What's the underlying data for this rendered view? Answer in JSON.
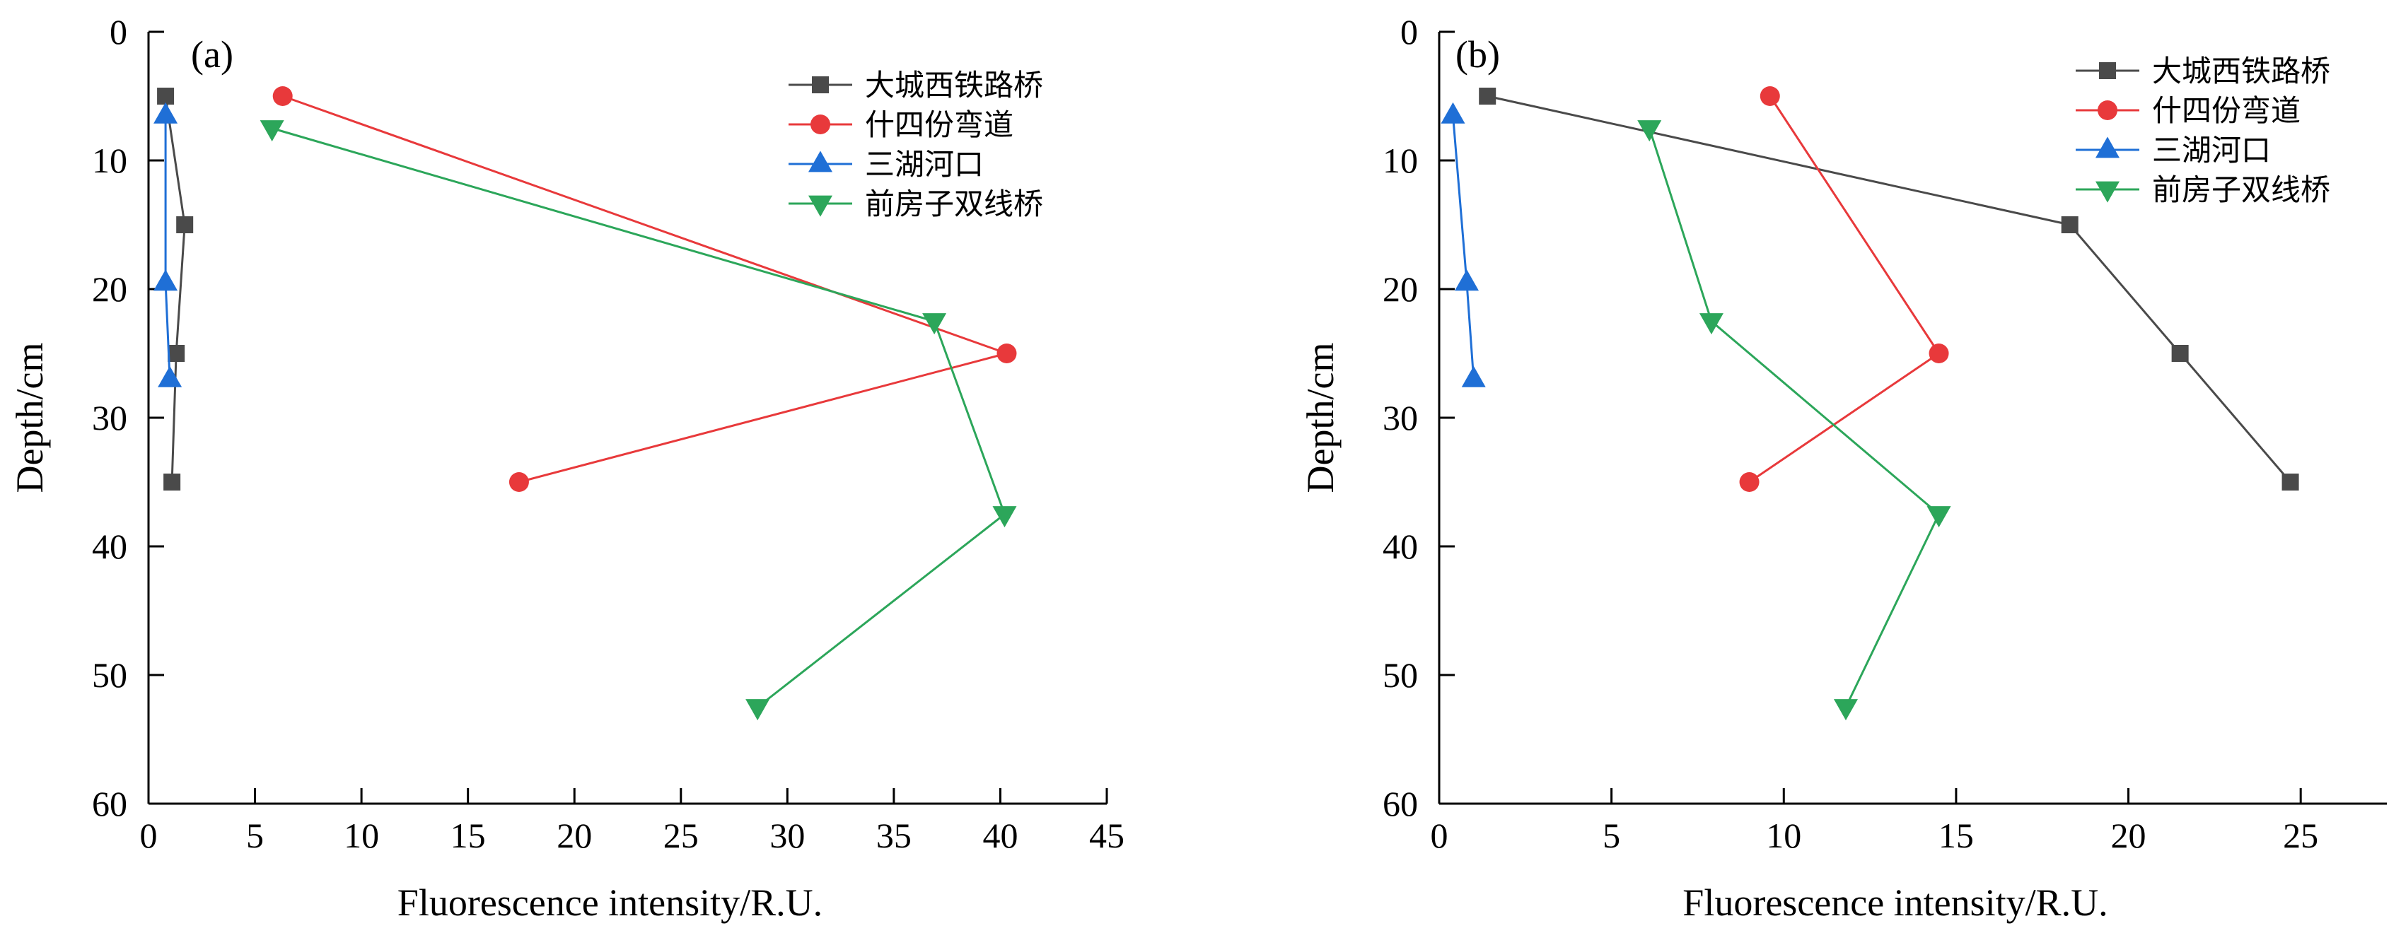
{
  "chart_data": [
    {
      "type": "line",
      "panel_label": "(a)",
      "xlabel": "Fluorescence intensity/R.U.",
      "ylabel": "Depth/cm",
      "xlim": [
        0,
        45
      ],
      "ylim": [
        0,
        60
      ],
      "y_inverted": true,
      "x_ticks": [
        0,
        5,
        10,
        15,
        20,
        25,
        30,
        35,
        40,
        45
      ],
      "y_ticks": [
        0,
        10,
        20,
        30,
        40,
        50,
        60
      ],
      "legend_position": "top-right",
      "series": [
        {
          "name": "大城西铁路桥",
          "color": "#4a4a4a",
          "marker": "square",
          "points": [
            [
              0.8,
              5
            ],
            [
              1.7,
              15
            ],
            [
              1.3,
              25
            ],
            [
              1.1,
              35
            ]
          ]
        },
        {
          "name": "什四份弯道",
          "color": "#e8393b",
          "marker": "circle",
          "points": [
            [
              6.3,
              5
            ],
            [
              40.3,
              25
            ],
            [
              17.4,
              35
            ]
          ]
        },
        {
          "name": "三湖河口",
          "color": "#1f6fd6",
          "marker": "triangle-up",
          "points": [
            [
              0.8,
              6.5
            ],
            [
              0.8,
              19.5
            ],
            [
              1.0,
              27
            ]
          ]
        },
        {
          "name": "前房子双线桥",
          "color": "#2ca65a",
          "marker": "triangle-down",
          "points": [
            [
              5.8,
              7.5
            ],
            [
              36.9,
              22.5
            ],
            [
              40.2,
              37.5
            ],
            [
              28.6,
              52.5
            ]
          ]
        }
      ]
    },
    {
      "type": "line",
      "panel_label": "(b)",
      "xlabel": "Fluorescence intensity/R.U.",
      "ylabel": "Depth/cm",
      "xlim": [
        0,
        27.5
      ],
      "ylim": [
        0,
        60
      ],
      "y_inverted": true,
      "x_ticks": [
        0,
        5,
        10,
        15,
        20,
        25
      ],
      "y_ticks": [
        0,
        10,
        20,
        30,
        40,
        50,
        60
      ],
      "legend_position": "top-right",
      "series": [
        {
          "name": "大城西铁路桥",
          "color": "#4a4a4a",
          "marker": "square",
          "points": [
            [
              1.4,
              5
            ],
            [
              18.3,
              15
            ],
            [
              21.5,
              25
            ],
            [
              24.7,
              35
            ]
          ]
        },
        {
          "name": "什四份弯道",
          "color": "#e8393b",
          "marker": "circle",
          "points": [
            [
              9.6,
              5
            ],
            [
              14.5,
              25
            ],
            [
              9.0,
              35
            ]
          ]
        },
        {
          "name": "三湖河口",
          "color": "#1f6fd6",
          "marker": "triangle-up",
          "points": [
            [
              0.4,
              6.5
            ],
            [
              0.8,
              19.5
            ],
            [
              1.0,
              27
            ]
          ]
        },
        {
          "name": "前房子双线桥",
          "color": "#2ca65a",
          "marker": "triangle-down",
          "points": [
            [
              6.1,
              7.5
            ],
            [
              7.9,
              22.5
            ],
            [
              14.5,
              37.5
            ],
            [
              11.8,
              52.5
            ]
          ]
        }
      ]
    }
  ]
}
